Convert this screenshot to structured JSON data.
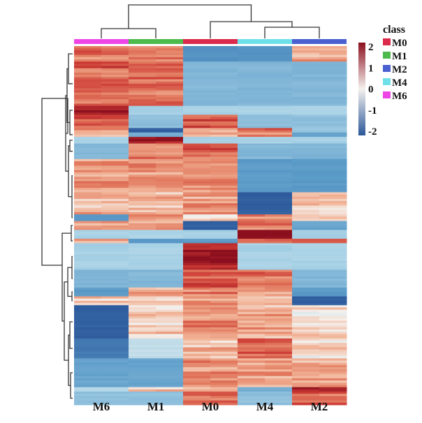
{
  "chart_data": {
    "type": "heatmap",
    "title": "",
    "columns": [
      "M6",
      "M1",
      "M0",
      "M4",
      "M2"
    ],
    "class_legend": {
      "title": "class",
      "entries": [
        {
          "label": "M0",
          "color": "#dc2a4c"
        },
        {
          "label": "M1",
          "color": "#4cbb4c"
        },
        {
          "label": "M2",
          "color": "#4a5fd0"
        },
        {
          "label": "M4",
          "color": "#6ee0ea"
        },
        {
          "label": "M6",
          "color": "#ee46e6"
        }
      ]
    },
    "column_class_colors": {
      "M6": "#ee46e6",
      "M1": "#4cbb4c",
      "M0": "#dc2a4c",
      "M4": "#6ee0ea",
      "M2": "#4a5fd0"
    },
    "colorbar": {
      "ticks": [
        2,
        1,
        0,
        -1,
        -2
      ],
      "tick_labels": [
        "2",
        "1",
        "0",
        "-1",
        "-2"
      ],
      "range": [
        -2,
        2
      ],
      "low_color": "#2b579a",
      "mid_color": "#f4f1ee",
      "high_color": "#8b0f1e"
    },
    "column_dendrogram": "((M6,M1),(M0,(M4,M2)))",
    "row_bands": [
      {
        "rows": 7,
        "values": [
          1.0,
          1.0,
          -1.3,
          -1.3,
          0.6
        ]
      },
      {
        "rows": 20,
        "values": [
          1.2,
          1.1,
          -0.9,
          -0.9,
          -0.9
        ]
      },
      {
        "rows": 4,
        "values": [
          1.9,
          -0.6,
          -0.6,
          -0.6,
          -0.6
        ]
      },
      {
        "rows": 6,
        "values": [
          1.3,
          -0.8,
          1.2,
          -0.8,
          -0.8
        ]
      },
      {
        "rows": 2,
        "values": [
          0.6,
          -1.9,
          0.4,
          1.3,
          -0.7
        ]
      },
      {
        "rows": 2,
        "values": [
          0.7,
          -1.0,
          0.5,
          1.0,
          -1.1
        ]
      },
      {
        "rows": 3,
        "values": [
          -0.6,
          1.9,
          -0.6,
          -0.6,
          -0.6
        ]
      },
      {
        "rows": 7,
        "values": [
          -0.9,
          1.0,
          1.2,
          -0.9,
          -0.9
        ]
      },
      {
        "rows": 15,
        "values": [
          0.8,
          0.7,
          0.9,
          -1.2,
          -1.2
        ]
      },
      {
        "rows": 10,
        "values": [
          0.5,
          0.5,
          0.7,
          -1.9,
          0.3
        ]
      },
      {
        "rows": 3,
        "values": [
          -1.2,
          0.8,
          0.2,
          0.8,
          0.4
        ]
      },
      {
        "rows": 4,
        "values": [
          0.6,
          0.5,
          -1.9,
          0.9,
          -1.1
        ]
      },
      {
        "rows": 4,
        "values": [
          -0.6,
          -0.6,
          -0.6,
          1.9,
          -0.6
        ]
      },
      {
        "rows": 2,
        "values": [
          0.6,
          -1.2,
          -1.2,
          1.0,
          1.0
        ]
      },
      {
        "rows": 12,
        "values": [
          -0.6,
          -0.6,
          1.9,
          -0.6,
          -0.6
        ]
      },
      {
        "rows": 8,
        "values": [
          -0.9,
          -0.9,
          1.3,
          1.1,
          -0.9
        ]
      },
      {
        "rows": 4,
        "values": [
          -1.2,
          0.6,
          0.9,
          0.7,
          -1.2
        ]
      },
      {
        "rows": 4,
        "values": [
          0.5,
          0.4,
          0.6,
          0.5,
          -1.9
        ]
      },
      {
        "rows": 15,
        "values": [
          -1.9,
          0.3,
          0.9,
          0.6,
          0.3
        ]
      },
      {
        "rows": 9,
        "values": [
          -1.6,
          -0.4,
          0.5,
          1.2,
          0.2
        ]
      },
      {
        "rows": 13,
        "values": [
          -1.1,
          -1.1,
          0.8,
          0.7,
          0.6
        ]
      },
      {
        "rows": 2,
        "values": [
          -0.5,
          0.4,
          0.7,
          -1.0,
          1.6
        ]
      },
      {
        "rows": 6,
        "values": [
          -0.8,
          -0.8,
          1.2,
          -0.8,
          1.1
        ]
      }
    ],
    "xlabel": "",
    "ylabel": ""
  }
}
